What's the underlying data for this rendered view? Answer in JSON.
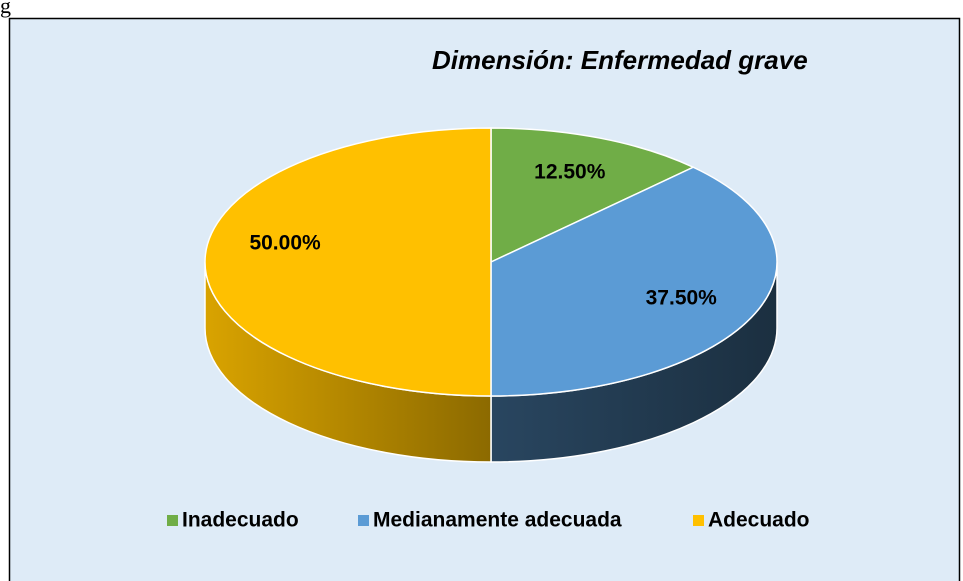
{
  "header_text": "g",
  "chart_data": {
    "type": "pie",
    "title": "Dimensión: Enfermedad grave",
    "categories": [
      "Inadecuado",
      "Medianamente adecuada",
      "Adecuado"
    ],
    "values": [
      12.5,
      37.5,
      50
    ],
    "value_labels": [
      "12.50%",
      "37.50%",
      "50.00%"
    ],
    "colors": [
      "#70ad47",
      "#5b9bd5",
      "#ffc000"
    ],
    "legend": "bottom"
  }
}
